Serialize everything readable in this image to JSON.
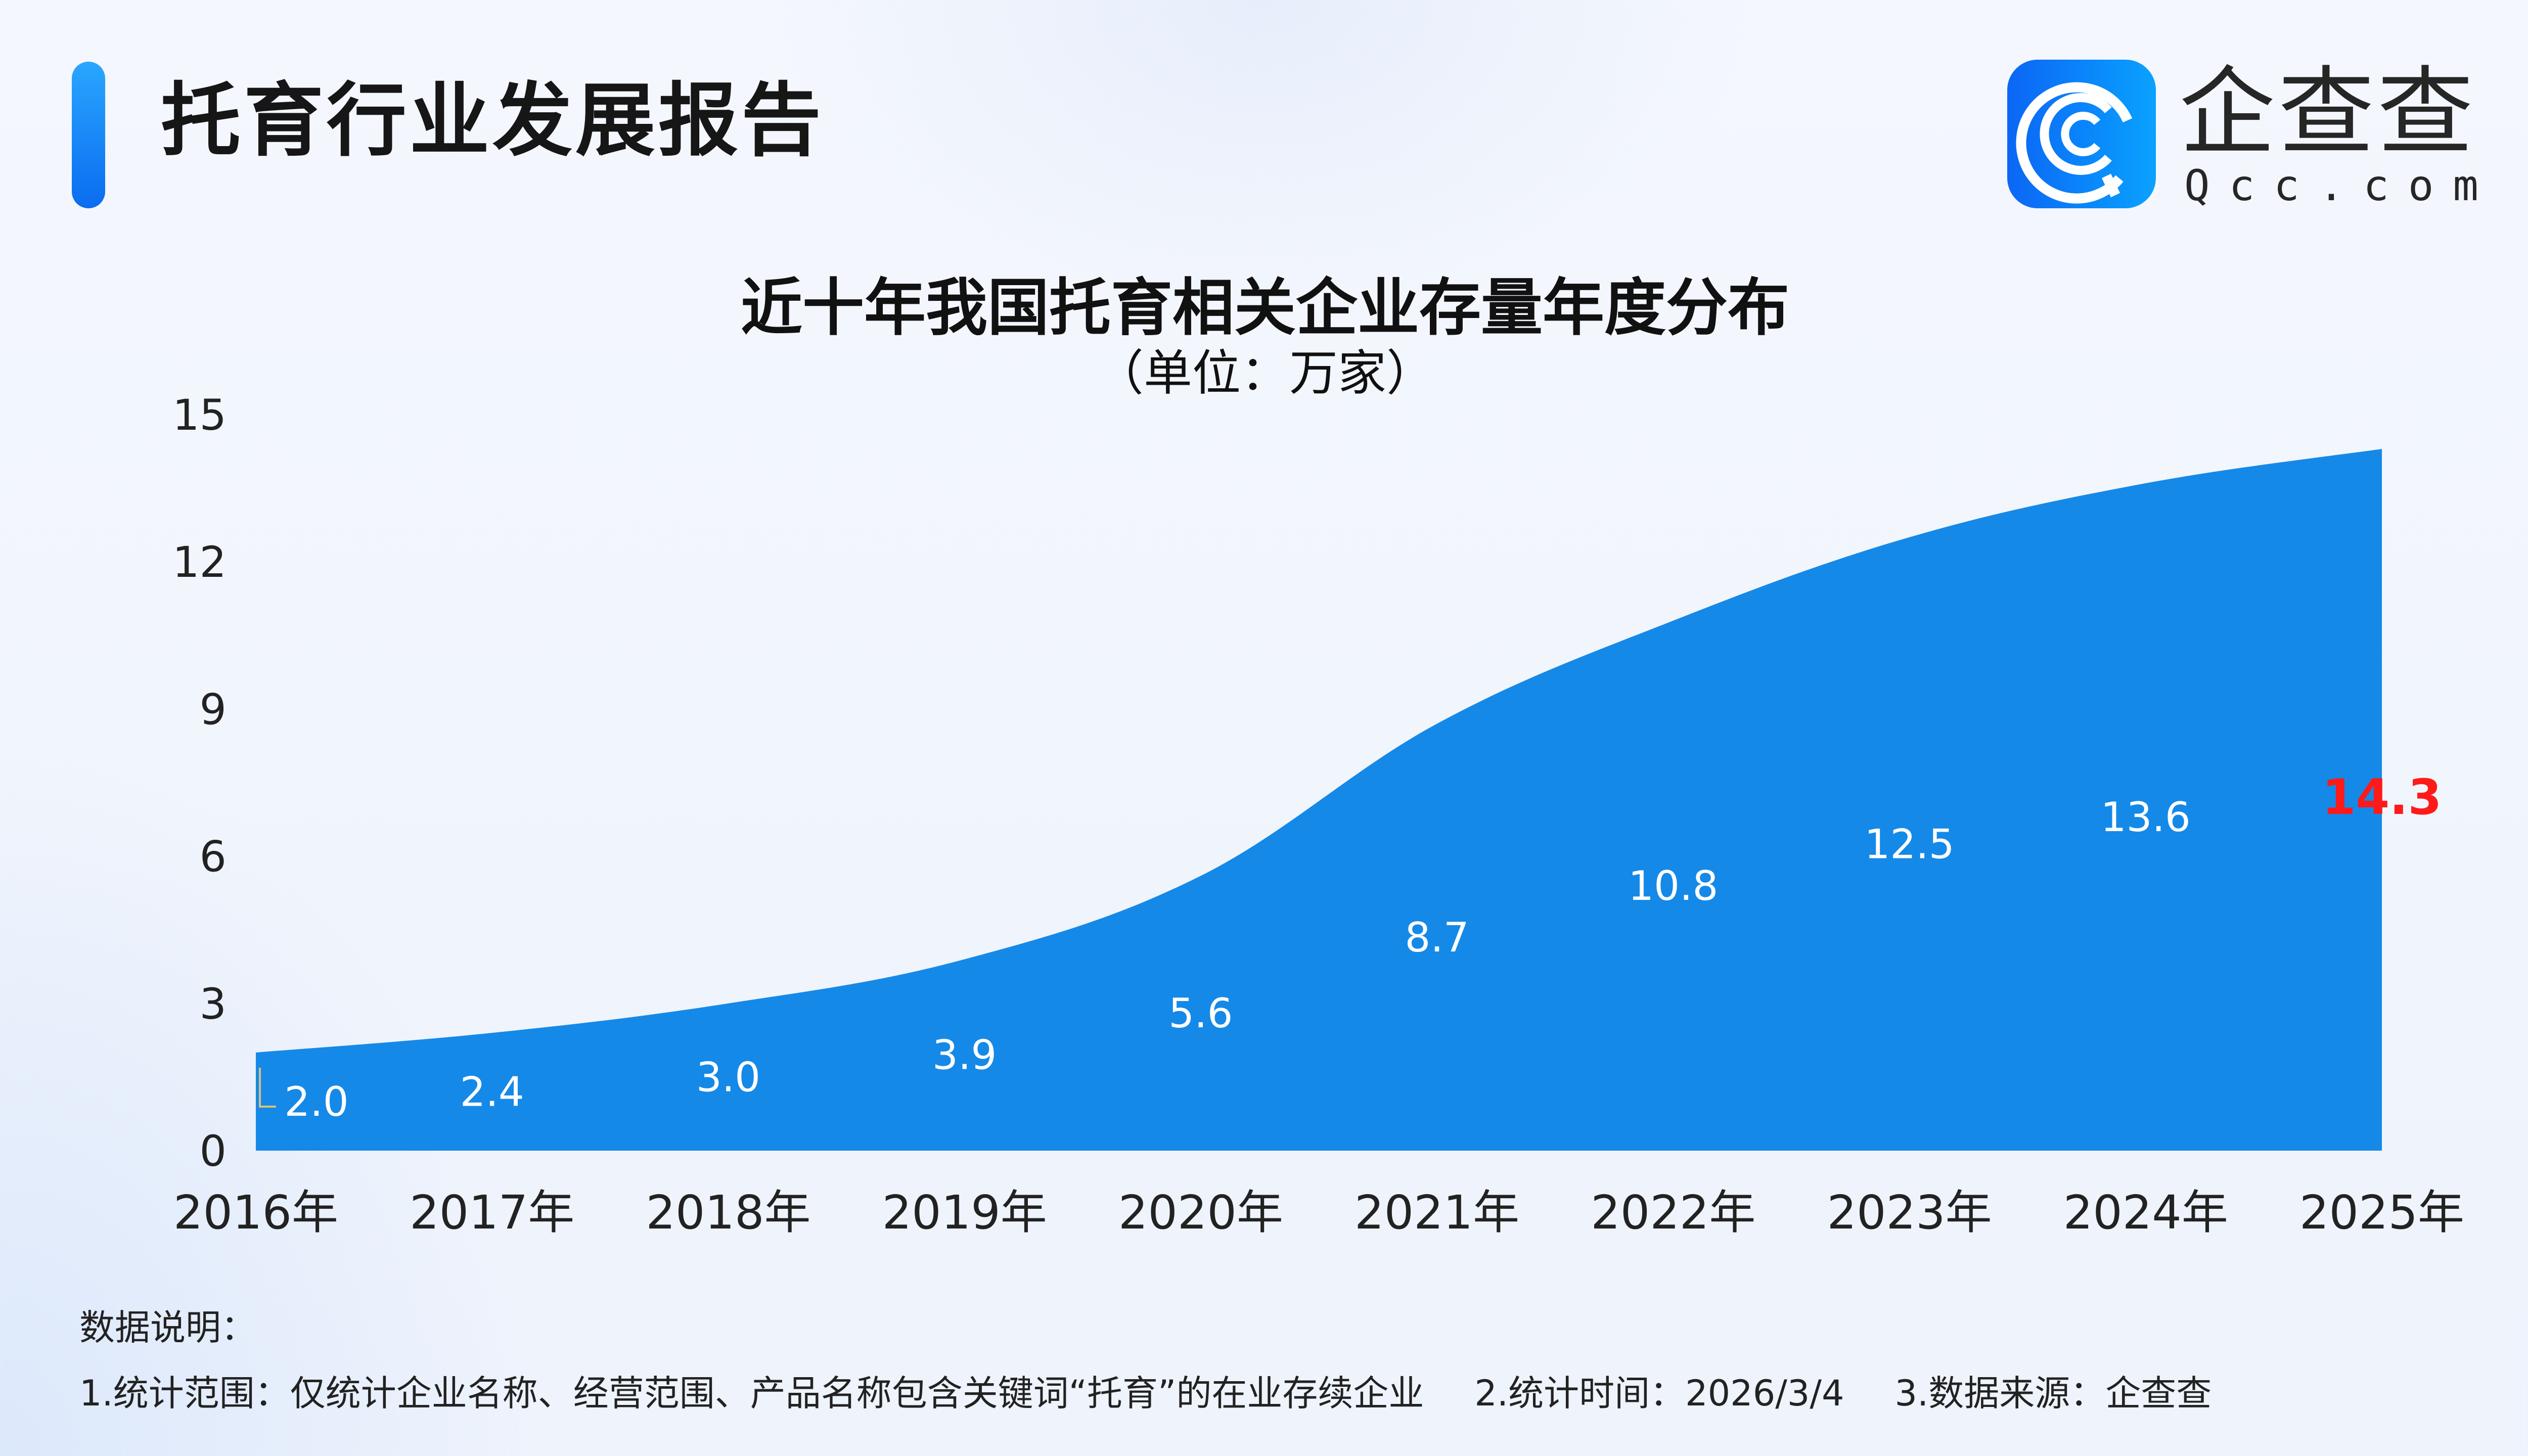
{
  "header": {
    "title": "托育行业发展报告",
    "accent_color": "#1a8cf5"
  },
  "logo": {
    "cn": "企查查",
    "en": "Qcc.com"
  },
  "chart_data": {
    "type": "area",
    "title": "近十年我国托育相关企业存量年度分布",
    "subtitle": "（单位：万家）",
    "categories": [
      "2016年",
      "2017年",
      "2018年",
      "2019年",
      "2020年",
      "2021年",
      "2022年",
      "2023年",
      "2024年",
      "2025年"
    ],
    "values": [
      2.0,
      2.4,
      3.0,
      3.9,
      5.6,
      8.7,
      10.8,
      12.5,
      13.6,
      14.3
    ],
    "data_labels": [
      "2.0",
      "2.4",
      "3.0",
      "3.9",
      "5.6",
      "8.7",
      "10.8",
      "12.5",
      "13.6",
      "14.3"
    ],
    "yticks": [
      "0",
      "3",
      "6",
      "9",
      "12",
      "15"
    ],
    "ylim": [
      0,
      15
    ],
    "grid": false,
    "fill_color": "#1589e8",
    "label_color": "#ffffff",
    "highlight_label_color": "#ff1a1a"
  },
  "footer": {
    "heading": "数据说明：",
    "notes": [
      "1.统计范围：仅统计企业名称、经营范围、产品名称包含关键词“托育”的在业存续企业",
      "2.统计时间：2026/3/4",
      "3.数据来源：企查查"
    ]
  }
}
